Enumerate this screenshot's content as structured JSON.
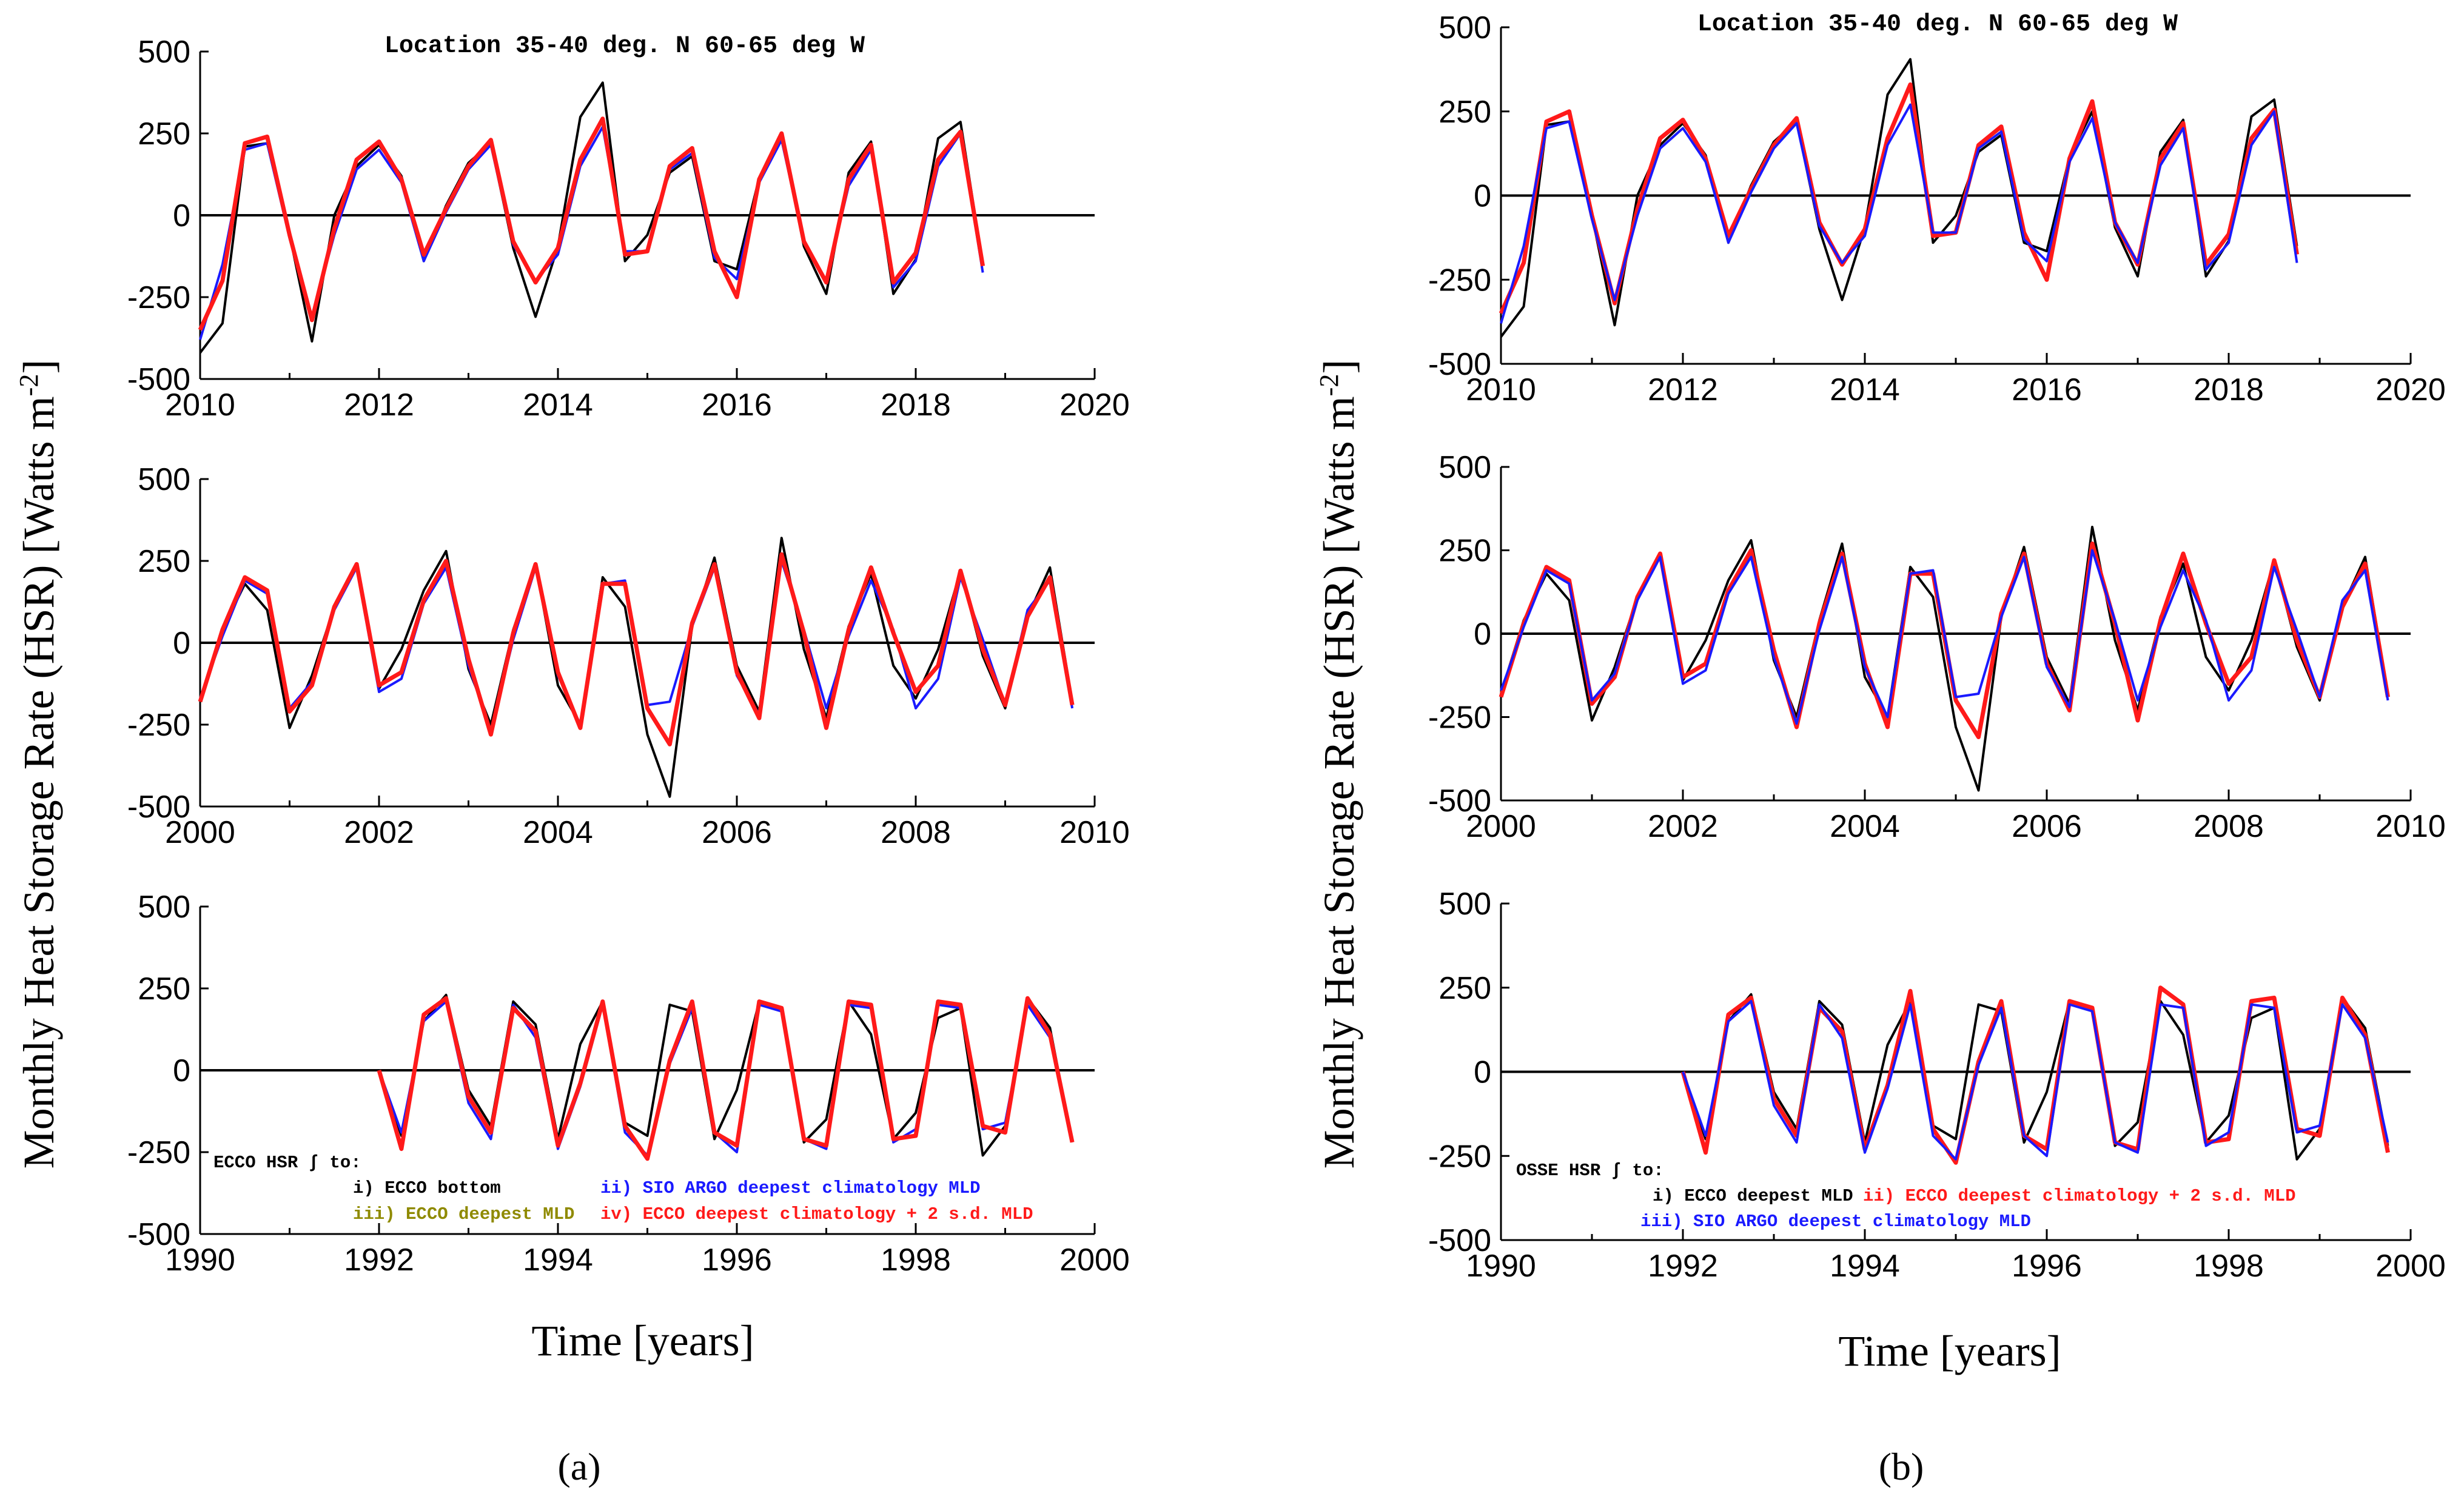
{
  "figure": {
    "y_axis_label": "Monthly Heat Storage Rate (HSR) [Watts m",
    "y_axis_exponent": "-2",
    "y_axis_close": "]",
    "x_axis_label": "Time [years]",
    "location_title": "Location 35-40 deg. N 60-65 deg W",
    "panel_a_label": "(a)",
    "panel_b_label": "(b)"
  },
  "legend_a": {
    "heading": "ECCO HSR ∫ to:",
    "i": "i) ECCO bottom",
    "ii": "ii) SIO ARGO deepest climatology MLD",
    "iii": "iii) ECCO deepest MLD",
    "iv": "iv) ECCO deepest climatology + 2 s.d. MLD"
  },
  "legend_b": {
    "heading": "OSSE HSR ∫ to:",
    "i": "i) ECCO deepest MLD",
    "ii": "ii) ECCO deepest climatology + 2 s.d. MLD",
    "iii": "iii) SIO ARGO deepest climatology MLD"
  },
  "colors": {
    "black": "#000000",
    "blue": "#1a1aff",
    "red": "#ff1a1a",
    "olive": "#8f8a00"
  },
  "chart_data": [
    {
      "type": "line",
      "panel": "a-top",
      "title": "Location 35-40 deg. N 60-65 deg W",
      "xlim": [
        2010,
        2020
      ],
      "ylim": [
        -500,
        500
      ],
      "xticks": [
        "2010",
        "2012",
        "2014",
        "2016",
        "2018",
        "2020"
      ],
      "yticks": [
        "500",
        "250",
        "0",
        "-250",
        "-500"
      ],
      "x_start": 2010.0,
      "x_step": 0.25,
      "series": [
        {
          "name": "i) ECCO bottom",
          "color": "#000000",
          "values": [
            -420,
            -330,
            210,
            220,
            -60,
            -385,
            0,
            150,
            215,
            120,
            -140,
            30,
            160,
            220,
            -100,
            -310,
            -95,
            300,
            405,
            -140,
            -60,
            130,
            180,
            -140,
            -165,
            115,
            250,
            -95,
            -240,
            130,
            225,
            -240,
            -135,
            235,
            285,
            -150
          ]
        },
        {
          "name": "ii) SIO ARGO deepest climatology MLD",
          "color": "#1a1aff",
          "values": [
            -380,
            -150,
            200,
            220,
            -70,
            -310,
            -60,
            140,
            200,
            100,
            -140,
            10,
            140,
            215,
            -90,
            -200,
            -120,
            150,
            270,
            -110,
            -110,
            140,
            190,
            -130,
            -195,
            100,
            230,
            -80,
            -200,
            90,
            200,
            -220,
            -140,
            150,
            250,
            -175
          ]
        },
        {
          "name": "iv) ECCO deepest climatology + 2 s.d. MLD",
          "color": "#ff1a1a",
          "values": [
            -350,
            -200,
            220,
            240,
            -60,
            -320,
            -40,
            170,
            225,
            110,
            -120,
            20,
            150,
            230,
            -80,
            -205,
            -100,
            170,
            295,
            -120,
            -110,
            150,
            205,
            -110,
            -250,
            110,
            250,
            -80,
            -205,
            110,
            215,
            -205,
            -115,
            170,
            255,
            -155
          ]
        }
      ]
    },
    {
      "type": "line",
      "panel": "a-middle",
      "xlim": [
        2000,
        2010
      ],
      "ylim": [
        -500,
        500
      ],
      "xticks": [
        "2000",
        "2002",
        "2004",
        "2006",
        "2008",
        "2010"
      ],
      "yticks": [
        "500",
        "250",
        "0",
        "-250",
        "-500"
      ],
      "x_start": 2000.0,
      "x_step": 0.25,
      "series": [
        {
          "name": "i) ECCO bottom",
          "color": "#000000",
          "values": [
            -180,
            40,
            180,
            100,
            -260,
            -100,
            110,
            230,
            -140,
            -20,
            160,
            280,
            -80,
            -250,
            40,
            240,
            -130,
            -250,
            200,
            110,
            -280,
            -470,
            50,
            260,
            -70,
            -210,
            320,
            -20,
            -230,
            50,
            210,
            -70,
            -170,
            -20,
            220,
            -40,
            -200,
            80,
            230,
            -180
          ]
        },
        {
          "name": "ii) SIO ARGO deepest climatology MLD",
          "color": "#1a1aff",
          "values": [
            -170,
            20,
            190,
            150,
            -200,
            -120,
            100,
            230,
            -150,
            -110,
            120,
            230,
            -70,
            -270,
            10,
            230,
            -100,
            -250,
            180,
            190,
            -190,
            -180,
            50,
            230,
            -100,
            -220,
            250,
            40,
            -200,
            20,
            190,
            40,
            -200,
            -110,
            200,
            10,
            -190,
            100,
            190,
            -200
          ]
        },
        {
          "name": "iv) ECCO deepest climatology + 2 s.d. MLD",
          "color": "#ff1a1a",
          "values": [
            -180,
            40,
            200,
            160,
            -210,
            -130,
            110,
            240,
            -130,
            -90,
            130,
            250,
            -50,
            -280,
            30,
            240,
            -90,
            -260,
            180,
            180,
            -200,
            -310,
            60,
            240,
            -90,
            -230,
            270,
            30,
            -260,
            40,
            230,
            30,
            -150,
            -70,
            220,
            -20,
            -190,
            80,
            200,
            -190
          ]
        }
      ]
    },
    {
      "type": "line",
      "panel": "a-bottom",
      "xlim": [
        1990,
        2000
      ],
      "ylim": [
        -500,
        500
      ],
      "xticks": [
        "1990",
        "1992",
        "1994",
        "1996",
        "1998",
        "2000"
      ],
      "yticks": [
        "500",
        "250",
        "0",
        "-250",
        "-500"
      ],
      "x_start": 1992.0,
      "x_step": 0.25,
      "series": [
        {
          "name": "i) ECCO bottom",
          "color": "#000000",
          "values": [
            0,
            -200,
            150,
            230,
            -60,
            -170,
            210,
            140,
            -210,
            80,
            210,
            -160,
            -200,
            200,
            180,
            -210,
            -60,
            210,
            190,
            -220,
            -150,
            210,
            110,
            -210,
            -130,
            160,
            190,
            -260,
            -170,
            220,
            130,
            -220
          ]
        },
        {
          "name": "ii) SIO ARGO deepest climatology MLD",
          "color": "#1a1aff",
          "values": [
            0,
            -190,
            150,
            210,
            -100,
            -210,
            200,
            100,
            -240,
            -50,
            200,
            -190,
            -260,
            20,
            190,
            -190,
            -250,
            200,
            180,
            -210,
            -240,
            200,
            190,
            -220,
            -180,
            200,
            190,
            -180,
            -160,
            200,
            100,
            -210
          ]
        },
        {
          "name": "iv) ECCO deepest climatology + 2 s.d. MLD",
          "color": "#ff1a1a",
          "values": [
            0,
            -240,
            170,
            220,
            -80,
            -190,
            190,
            120,
            -230,
            -40,
            210,
            -170,
            -270,
            30,
            210,
            -190,
            -230,
            210,
            190,
            -210,
            -230,
            210,
            200,
            -210,
            -200,
            210,
            200,
            -170,
            -190,
            220,
            110,
            -220
          ]
        }
      ]
    },
    {
      "type": "line",
      "panel": "b-top",
      "title": "Location 35-40 deg. N 60-65 deg W",
      "xlim": [
        2010,
        2020
      ],
      "ylim": [
        -500,
        500
      ],
      "xticks": [
        "2010",
        "2012",
        "2014",
        "2016",
        "2018",
        "2020"
      ],
      "yticks": [
        "500",
        "250",
        "0",
        "-250",
        "-500"
      ],
      "x_start": 2010.0,
      "x_step": 0.25,
      "series": [
        {
          "name": "i) ECCO deepest MLD",
          "color": "#000000",
          "values": [
            -420,
            -330,
            210,
            220,
            -60,
            -385,
            0,
            150,
            215,
            120,
            -140,
            30,
            160,
            220,
            -100,
            -310,
            -95,
            300,
            405,
            -140,
            -60,
            130,
            180,
            -140,
            -165,
            115,
            250,
            -95,
            -240,
            130,
            225,
            -240,
            -135,
            235,
            285,
            -150
          ]
        },
        {
          "name": "ii) ECCO deepest climatology + 2 s.d. MLD",
          "color": "#ff1a1a",
          "values": [
            -350,
            -200,
            220,
            250,
            -60,
            -320,
            -40,
            170,
            225,
            110,
            -120,
            20,
            150,
            230,
            -80,
            -205,
            -100,
            170,
            330,
            -120,
            -110,
            150,
            205,
            -110,
            -250,
            110,
            280,
            -80,
            -205,
            110,
            215,
            -205,
            -115,
            170,
            255,
            -175
          ]
        },
        {
          "name": "iii) SIO ARGO deepest climatology MLD",
          "color": "#1a1aff",
          "values": [
            -380,
            -150,
            200,
            220,
            -70,
            -310,
            -60,
            140,
            200,
            100,
            -140,
            10,
            140,
            215,
            -90,
            -200,
            -120,
            150,
            270,
            -110,
            -110,
            140,
            190,
            -130,
            -195,
            100,
            230,
            -80,
            -200,
            90,
            200,
            -220,
            -140,
            150,
            250,
            -200
          ]
        }
      ]
    },
    {
      "type": "line",
      "panel": "b-middle",
      "xlim": [
        2000,
        2010
      ],
      "ylim": [
        -500,
        500
      ],
      "xticks": [
        "2000",
        "2002",
        "2004",
        "2006",
        "2008",
        "2010"
      ],
      "yticks": [
        "500",
        "250",
        "0",
        "-250",
        "-500"
      ],
      "x_start": 2000.0,
      "x_step": 0.25,
      "series": [
        {
          "name": "i) ECCO deepest MLD",
          "color": "#000000",
          "values": [
            -180,
            40,
            180,
            100,
            -260,
            -100,
            110,
            230,
            -140,
            -20,
            160,
            280,
            -80,
            -250,
            40,
            270,
            -130,
            -250,
            200,
            110,
            -280,
            -470,
            50,
            260,
            -70,
            -210,
            320,
            -20,
            -230,
            50,
            210,
            -70,
            -170,
            -20,
            220,
            -40,
            -200,
            80,
            230,
            -180
          ]
        },
        {
          "name": "ii) ECCO deepest climatology + 2 s.d. MLD",
          "color": "#ff1a1a",
          "values": [
            -190,
            30,
            200,
            160,
            -210,
            -130,
            110,
            240,
            -130,
            -90,
            130,
            250,
            -50,
            -280,
            30,
            240,
            -90,
            -280,
            180,
            180,
            -200,
            -310,
            60,
            240,
            -90,
            -230,
            270,
            30,
            -260,
            40,
            240,
            30,
            -150,
            -70,
            220,
            -20,
            -190,
            80,
            210,
            -190
          ]
        },
        {
          "name": "iii) SIO ARGO deepest climatology MLD",
          "color": "#1a1aff",
          "values": [
            -170,
            20,
            190,
            150,
            -200,
            -120,
            100,
            230,
            -150,
            -110,
            120,
            230,
            -70,
            -270,
            10,
            230,
            -100,
            -250,
            180,
            190,
            -190,
            -180,
            50,
            230,
            -100,
            -220,
            250,
            40,
            -200,
            20,
            190,
            40,
            -200,
            -110,
            200,
            10,
            -190,
            100,
            190,
            -200
          ]
        }
      ]
    },
    {
      "type": "line",
      "panel": "b-bottom",
      "xlim": [
        1990,
        2000
      ],
      "ylim": [
        -500,
        500
      ],
      "xticks": [
        "1990",
        "1992",
        "1994",
        "1996",
        "1998",
        "2000"
      ],
      "yticks": [
        "500",
        "250",
        "0",
        "-250",
        "-500"
      ],
      "x_start": 1992.0,
      "x_step": 0.25,
      "series": [
        {
          "name": "i) ECCO deepest MLD",
          "color": "#000000",
          "values": [
            0,
            -200,
            150,
            230,
            -60,
            -170,
            210,
            140,
            -210,
            80,
            210,
            -160,
            -200,
            200,
            180,
            -210,
            -60,
            210,
            190,
            -220,
            -150,
            210,
            110,
            -210,
            -130,
            160,
            190,
            -260,
            -170,
            220,
            130,
            -220
          ]
        },
        {
          "name": "ii) ECCO deepest climatology + 2 s.d. MLD",
          "color": "#ff1a1a",
          "values": [
            0,
            -240,
            170,
            220,
            -80,
            -190,
            190,
            120,
            -230,
            -40,
            240,
            -170,
            -270,
            30,
            210,
            -190,
            -230,
            210,
            190,
            -210,
            -230,
            250,
            200,
            -210,
            -200,
            210,
            220,
            -170,
            -190,
            220,
            110,
            -240
          ]
        },
        {
          "name": "iii) SIO ARGO deepest climatology MLD",
          "color": "#1a1aff",
          "values": [
            0,
            -190,
            150,
            210,
            -100,
            -210,
            200,
            100,
            -240,
            -50,
            200,
            -190,
            -260,
            20,
            190,
            -190,
            -250,
            200,
            180,
            -210,
            -240,
            200,
            190,
            -220,
            -180,
            200,
            190,
            -180,
            -160,
            200,
            100,
            -210
          ]
        }
      ]
    }
  ]
}
